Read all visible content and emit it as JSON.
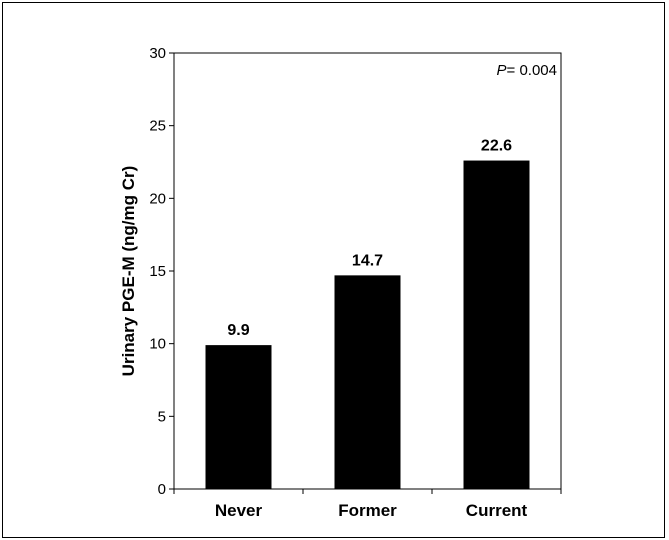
{
  "chart_data": {
    "type": "bar",
    "categories": [
      "Never",
      "Former",
      "Current"
    ],
    "values": [
      9.9,
      14.7,
      22.6
    ],
    "data_labels": [
      "9.9",
      "14.7",
      "22.6"
    ],
    "title": "",
    "xlabel": "",
    "ylabel": "Urinary PGE-M (ng/mg Cr)",
    "ylim": [
      0,
      30
    ],
    "yticks": [
      0,
      5,
      10,
      15,
      20,
      25,
      30
    ],
    "grid": false,
    "annotation": {
      "italic": "P",
      "rest": "= 0.004"
    },
    "bar_color": "#000000"
  }
}
